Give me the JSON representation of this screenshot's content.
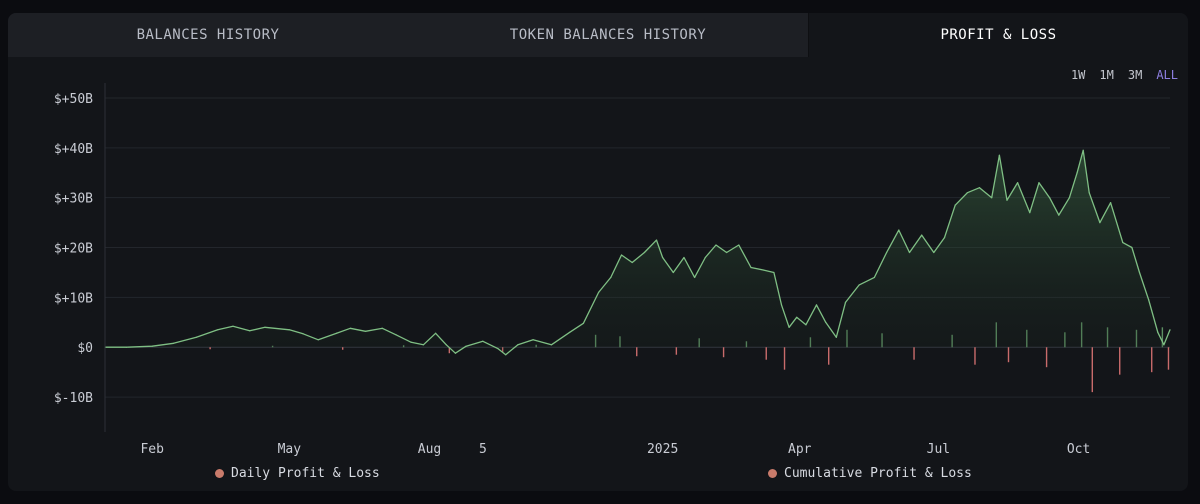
{
  "tabs": [
    {
      "label": "BALANCES HISTORY"
    },
    {
      "label": "TOKEN BALANCES HISTORY"
    },
    {
      "label": "PROFIT & LOSS"
    }
  ],
  "ranges": [
    "1W",
    "1M",
    "3M",
    "ALL"
  ],
  "active_range": "ALL",
  "legend": {
    "daily": "Daily Profit & Loss",
    "cumulative": "Cumulative Profit & Loss"
  },
  "colors": {
    "line": "#7fbf84",
    "positive_bar": "#5d8f63",
    "negative_bar": "#c96b6b",
    "legend_dot": "#c97b6b",
    "accent": "#8c7ee0"
  },
  "chart_data": {
    "type": "line",
    "title": "",
    "xlabel": "",
    "ylabel": "",
    "ylim": [
      -17,
      52
    ],
    "yticks": [
      -10,
      0,
      10,
      20,
      30,
      40,
      50
    ],
    "ytick_labels": [
      "$-10B",
      "$0",
      "$+10B",
      "$+20B",
      "$+30B",
      "$+40B",
      "$+50B"
    ],
    "xticks": [
      {
        "label": "Feb",
        "date": "2024-02-01"
      },
      {
        "label": "May",
        "date": "2024-05-01"
      },
      {
        "label": "Aug",
        "date": "2024-08-01"
      },
      {
        "label": "5",
        "date": "2024-09-05"
      },
      {
        "label": "2025",
        "date": "2025-01-01"
      },
      {
        "label": "Apr",
        "date": "2025-04-01"
      },
      {
        "label": "Jul",
        "date": "2025-07-01"
      },
      {
        "label": "Oct",
        "date": "2025-10-01"
      }
    ],
    "xlim": [
      "2024-01-01",
      "2025-11-30"
    ],
    "grid": true,
    "legend_position": "bottom",
    "series": [
      {
        "name": "Cumulative Profit & Loss",
        "kind": "area",
        "points": [
          [
            "2024-01-01",
            0
          ],
          [
            "2024-01-15",
            0
          ],
          [
            "2024-02-01",
            0.2
          ],
          [
            "2024-02-15",
            0.8
          ],
          [
            "2024-03-01",
            2
          ],
          [
            "2024-03-15",
            3.5
          ],
          [
            "2024-03-25",
            4.2
          ],
          [
            "2024-04-05",
            3.3
          ],
          [
            "2024-04-15",
            4
          ],
          [
            "2024-05-01",
            3.5
          ],
          [
            "2024-05-10",
            2.7
          ],
          [
            "2024-05-20",
            1.5
          ],
          [
            "2024-06-01",
            2.8
          ],
          [
            "2024-06-10",
            3.8
          ],
          [
            "2024-06-20",
            3.2
          ],
          [
            "2024-07-01",
            3.8
          ],
          [
            "2024-07-10",
            2.5
          ],
          [
            "2024-07-20",
            1
          ],
          [
            "2024-07-28",
            0.5
          ],
          [
            "2024-08-05",
            2.8
          ],
          [
            "2024-08-12",
            0.5
          ],
          [
            "2024-08-18",
            -1.2
          ],
          [
            "2024-08-25",
            0.2
          ],
          [
            "2024-09-05",
            1.2
          ],
          [
            "2024-09-15",
            -0.3
          ],
          [
            "2024-09-20",
            -1.5
          ],
          [
            "2024-09-28",
            0.5
          ],
          [
            "2024-10-08",
            1.5
          ],
          [
            "2024-10-20",
            0.5
          ],
          [
            "2024-11-01",
            3
          ],
          [
            "2024-11-10",
            4.8
          ],
          [
            "2024-11-20",
            11
          ],
          [
            "2024-11-28",
            14
          ],
          [
            "2024-12-05",
            18.5
          ],
          [
            "2024-12-12",
            17
          ],
          [
            "2024-12-20",
            19
          ],
          [
            "2024-12-28",
            21.5
          ],
          [
            "2025-01-01",
            18
          ],
          [
            "2025-01-08",
            15
          ],
          [
            "2025-01-15",
            18
          ],
          [
            "2025-01-22",
            14
          ],
          [
            "2025-01-29",
            18
          ],
          [
            "2025-02-05",
            20.5
          ],
          [
            "2025-02-12",
            19
          ],
          [
            "2025-02-20",
            20.5
          ],
          [
            "2025-02-28",
            16
          ],
          [
            "2025-03-08",
            15.5
          ],
          [
            "2025-03-15",
            15
          ],
          [
            "2025-03-20",
            8.5
          ],
          [
            "2025-03-25",
            4
          ],
          [
            "2025-03-30",
            6
          ],
          [
            "2025-04-05",
            4.5
          ],
          [
            "2025-04-12",
            8.5
          ],
          [
            "2025-04-18",
            5
          ],
          [
            "2025-04-25",
            2
          ],
          [
            "2025-05-01",
            9
          ],
          [
            "2025-05-10",
            12.5
          ],
          [
            "2025-05-20",
            14
          ],
          [
            "2025-05-28",
            19
          ],
          [
            "2025-06-05",
            23.5
          ],
          [
            "2025-06-12",
            19
          ],
          [
            "2025-06-20",
            22.5
          ],
          [
            "2025-06-28",
            19
          ],
          [
            "2025-07-05",
            22
          ],
          [
            "2025-07-12",
            28.5
          ],
          [
            "2025-07-20",
            31
          ],
          [
            "2025-07-28",
            32
          ],
          [
            "2025-08-05",
            30
          ],
          [
            "2025-08-10",
            38.5
          ],
          [
            "2025-08-15",
            29.5
          ],
          [
            "2025-08-22",
            33
          ],
          [
            "2025-08-30",
            27
          ],
          [
            "2025-09-05",
            33
          ],
          [
            "2025-09-12",
            30
          ],
          [
            "2025-09-18",
            26.5
          ],
          [
            "2025-09-25",
            30
          ],
          [
            "2025-09-30",
            35
          ],
          [
            "2025-10-04",
            39.5
          ],
          [
            "2025-10-08",
            31
          ],
          [
            "2025-10-15",
            25
          ],
          [
            "2025-10-22",
            29
          ],
          [
            "2025-10-30",
            21
          ],
          [
            "2025-11-05",
            20
          ],
          [
            "2025-11-10",
            15
          ],
          [
            "2025-11-16",
            9.5
          ],
          [
            "2025-11-22",
            3
          ],
          [
            "2025-11-26",
            0.5
          ],
          [
            "2025-11-30",
            3.5
          ]
        ]
      },
      {
        "name": "Daily Profit & Loss",
        "kind": "bar",
        "points": [
          [
            "2024-03-10",
            -0.4
          ],
          [
            "2024-04-20",
            0.3
          ],
          [
            "2024-06-05",
            -0.5
          ],
          [
            "2024-07-15",
            0.4
          ],
          [
            "2024-08-14",
            -1.2
          ],
          [
            "2024-09-18",
            -1
          ],
          [
            "2024-10-10",
            0.5
          ],
          [
            "2024-11-18",
            2.5
          ],
          [
            "2024-12-04",
            2.2
          ],
          [
            "2024-12-15",
            -1.8
          ],
          [
            "2025-01-10",
            -1.5
          ],
          [
            "2025-01-25",
            1.8
          ],
          [
            "2025-02-10",
            -2
          ],
          [
            "2025-02-25",
            1.2
          ],
          [
            "2025-03-10",
            -2.5
          ],
          [
            "2025-03-22",
            -4.5
          ],
          [
            "2025-04-08",
            2
          ],
          [
            "2025-04-20",
            -3.5
          ],
          [
            "2025-05-02",
            3.5
          ],
          [
            "2025-05-25",
            2.8
          ],
          [
            "2025-06-15",
            -2.5
          ],
          [
            "2025-07-10",
            2.5
          ],
          [
            "2025-07-25",
            -3.5
          ],
          [
            "2025-08-08",
            5
          ],
          [
            "2025-08-16",
            -3
          ],
          [
            "2025-08-28",
            3.5
          ],
          [
            "2025-09-10",
            -4
          ],
          [
            "2025-09-22",
            3
          ],
          [
            "2025-10-03",
            5
          ],
          [
            "2025-10-10",
            -9
          ],
          [
            "2025-10-20",
            4
          ],
          [
            "2025-10-28",
            -5.5
          ],
          [
            "2025-11-08",
            3.5
          ],
          [
            "2025-11-18",
            -5
          ],
          [
            "2025-11-25",
            4
          ],
          [
            "2025-11-29",
            -4.5
          ]
        ]
      }
    ]
  }
}
